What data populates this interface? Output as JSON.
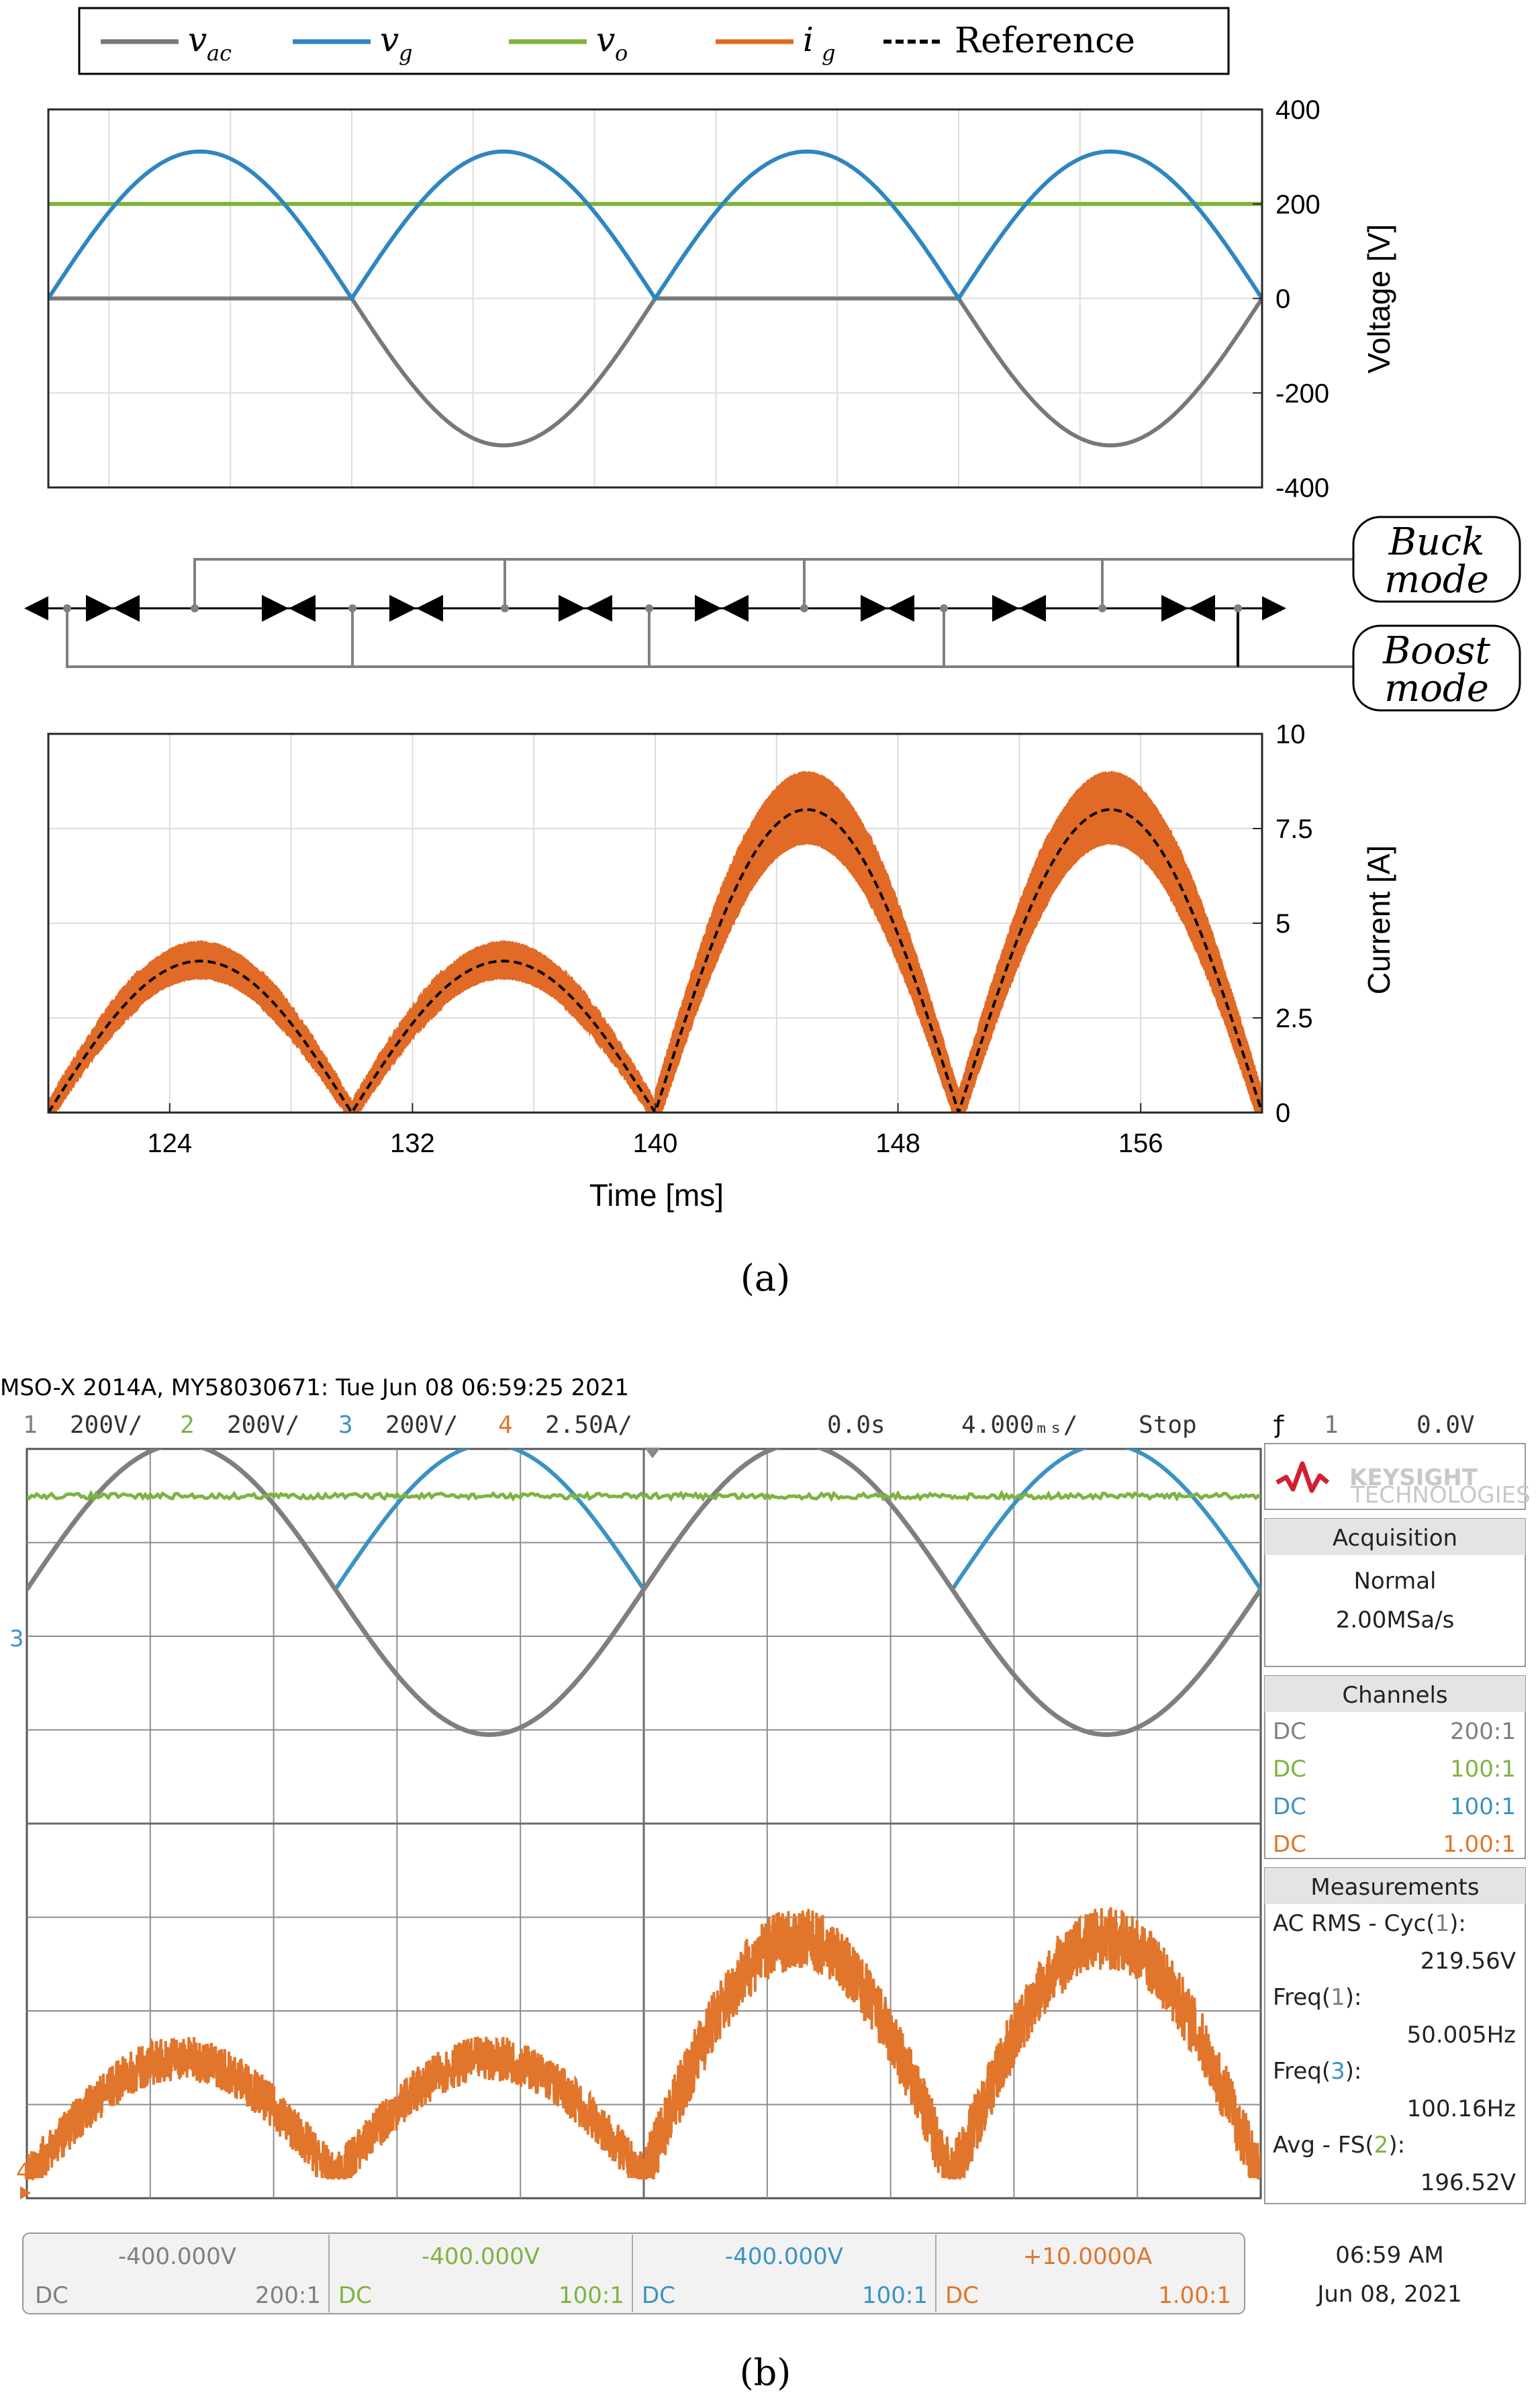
{
  "colors": {
    "vac": "#787878",
    "vg": "#2E86C1",
    "vo": "#7FB33A",
    "ig": "#E06A26",
    "reference": "#000000",
    "ch1": "#7F7F7F",
    "ch2": "#7DB342",
    "ch3": "#3A93C3",
    "ch4": "#E0752B"
  },
  "figure_a": {
    "caption": "(a)",
    "legend": [
      {
        "key": "vac",
        "main": "v",
        "sub": "ac"
      },
      {
        "key": "vg",
        "main": "v",
        "sub": "g"
      },
      {
        "key": "vo",
        "main": "v",
        "sub": "o"
      },
      {
        "key": "ig",
        "main": "i",
        "sub": "g"
      },
      {
        "key": "reference",
        "text": "Reference"
      }
    ],
    "modes": {
      "buck_line1": "Buck",
      "buck_line2": "mode",
      "boost_line1": "Boost",
      "boost_line2": "mode"
    }
  },
  "chart_data": [
    {
      "type": "line",
      "ylabel": "Voltage [V]",
      "ylim": [
        -400,
        400
      ],
      "yticks": [
        "400",
        "200",
        "0",
        "-200",
        "-400"
      ],
      "xlim": [
        120,
        160
      ],
      "grid": true,
      "series": [
        {
          "name": "vac",
          "shape": "sine",
          "amplitude": 311,
          "frequency_hz": 50,
          "start_ms": 120
        },
        {
          "name": "vg",
          "shape": "rectified sine",
          "amplitude": 311,
          "frequency_hz": 50,
          "start_ms": 120
        },
        {
          "name": "vo",
          "shape": "constant",
          "value": 200
        }
      ]
    },
    {
      "type": "line",
      "xlabel": "Time [ms]",
      "ylabel": "Current [A]",
      "ylim": [
        0,
        10
      ],
      "yticks": [
        "10",
        "7.5",
        "5",
        "2.5",
        "0"
      ],
      "xlim": [
        120,
        160
      ],
      "xticks": [
        "124",
        "132",
        "140",
        "148",
        "156"
      ],
      "grid": true,
      "series": [
        {
          "name": "Reference",
          "shape": "rectified sine",
          "peaks_A": [
            4,
            4,
            8,
            8
          ]
        },
        {
          "name": "ig",
          "shape": "rectified sine with ripple band",
          "peaks_A": [
            4,
            4,
            8,
            8
          ]
        }
      ]
    }
  ],
  "figure_b": {
    "caption": "(b)",
    "header": "MSO-X 2014A, MY58030671: Tue Jun 08 06:59:25 2021",
    "channels_row": [
      {
        "num": "1",
        "scale": "200V/"
      },
      {
        "num": "2",
        "scale": "200V/"
      },
      {
        "num": "3",
        "scale": "200V/"
      },
      {
        "num": "4",
        "scale": "2.50A/"
      }
    ],
    "time_offset": "0.0s",
    "time_scale": "4.000ₘₛ/",
    "run_state": "Stop",
    "trigger": {
      "symbol": "ƒ",
      "channel": "1",
      "level": "0.0V"
    },
    "brand": "KEYSIGHT",
    "brand_sub": "TECHNOLOGIES",
    "acquisition": {
      "title": "Acquisition",
      "mode": "Normal",
      "rate": "2.00MSa/s"
    },
    "channels_panel": {
      "title": "Channels",
      "rows": [
        {
          "coupling": "DC",
          "probe": "200:1"
        },
        {
          "coupling": "DC",
          "probe": "100:1"
        },
        {
          "coupling": "DC",
          "probe": "100:1"
        },
        {
          "coupling": "DC",
          "probe": "1.00:1"
        }
      ]
    },
    "measurements": {
      "title": "Measurements",
      "items": [
        {
          "label_pre": "AC RMS - Cyc(",
          "ch": "1",
          "label_post": "):",
          "value": "219.56V"
        },
        {
          "label_pre": "Freq(",
          "ch": "1",
          "label_post": "):",
          "value": "50.005Hz"
        },
        {
          "label_pre": "Freq(",
          "ch": "3",
          "label_post": "):",
          "value": "100.16Hz"
        },
        {
          "label_pre": "Avg - FS(",
          "ch": "2",
          "label_post": "):",
          "value": "196.52V"
        }
      ]
    },
    "bottom_bar": [
      {
        "offset": "-400.000V",
        "coupling": "DC",
        "probe": "200:1"
      },
      {
        "offset": "-400.000V",
        "coupling": "DC",
        "probe": "100:1"
      },
      {
        "offset": "-400.000V",
        "coupling": "DC",
        "probe": "100:1"
      },
      {
        "offset": "+10.0000A",
        "coupling": "DC",
        "probe": "1.00:1"
      }
    ],
    "clock": {
      "time": "06:59 AM",
      "date": "Jun 08, 2021"
    },
    "ground_marker_label": "4"
  }
}
